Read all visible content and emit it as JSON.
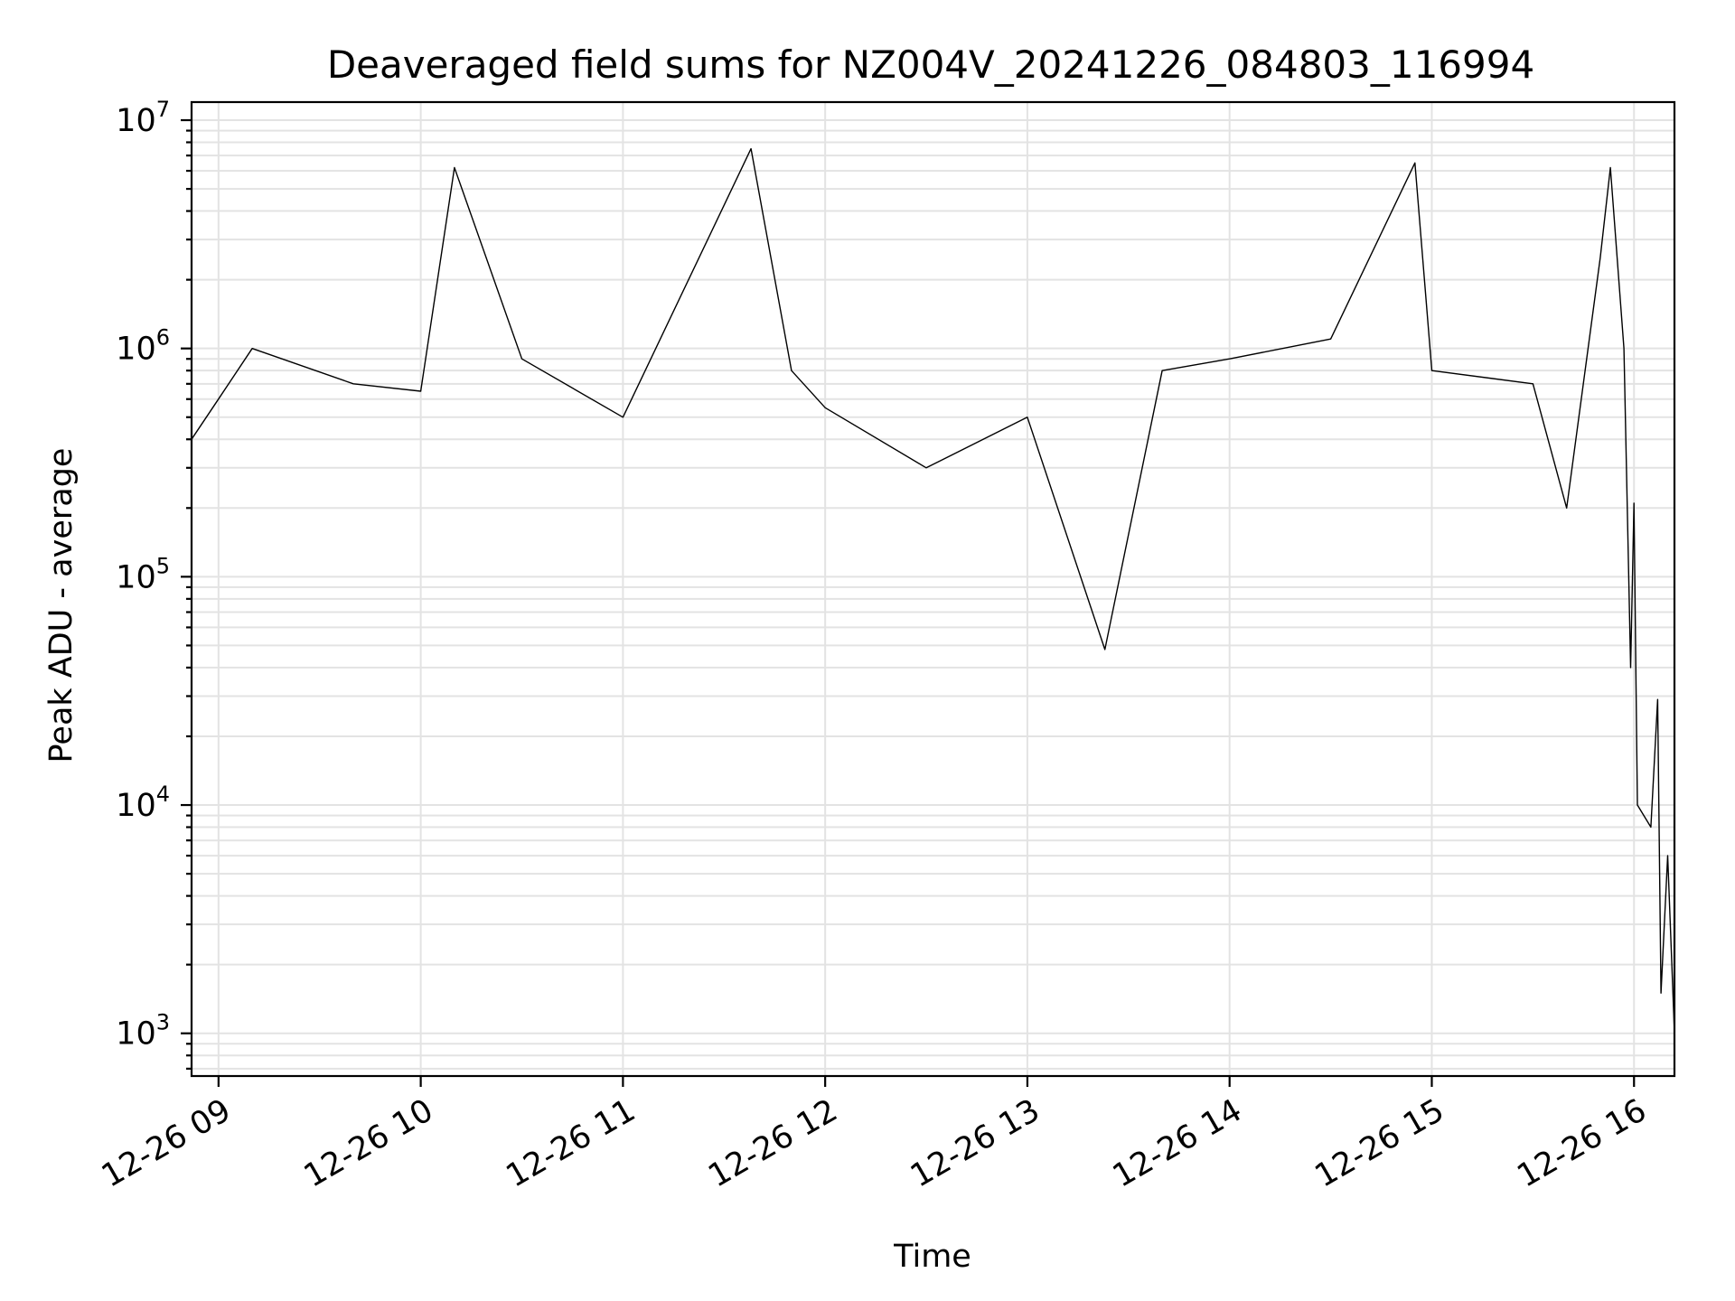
{
  "chart_data": {
    "type": "line",
    "title": "Deaveraged field sums for NZ004V_20241226_084803_116994",
    "xlabel": "Time",
    "ylabel": "Peak ADU - average",
    "yscale": "log",
    "ylim": [
      650,
      12000000
    ],
    "xlim": [
      "2024-12-26 08:52",
      "2024-12-26 16:12"
    ],
    "grid": true,
    "x_tick_labels": [
      "12-26 09",
      "12-26 10",
      "12-26 11",
      "12-26 12",
      "12-26 13",
      "12-26 14",
      "12-26 15",
      "12-26 16"
    ],
    "x_tick_values": [
      "2024-12-26 09:00",
      "2024-12-26 10:00",
      "2024-12-26 11:00",
      "2024-12-26 12:00",
      "2024-12-26 13:00",
      "2024-12-26 14:00",
      "2024-12-26 15:00",
      "2024-12-26 16:00"
    ],
    "y_ticks": [
      {
        "value": 1000,
        "base": "10",
        "exp": "3"
      },
      {
        "value": 10000,
        "base": "10",
        "exp": "4"
      },
      {
        "value": 100000,
        "base": "10",
        "exp": "5"
      },
      {
        "value": 1000000,
        "base": "10",
        "exp": "6"
      },
      {
        "value": 10000000,
        "base": "10",
        "exp": "7"
      }
    ],
    "series": [
      {
        "color": "#000000",
        "points": [
          [
            "2024-12-26 08:52",
            400000
          ],
          [
            "2024-12-26 09:00",
            600000
          ],
          [
            "2024-12-26 09:10",
            1000000
          ],
          [
            "2024-12-26 09:40",
            700000
          ],
          [
            "2024-12-26 10:00",
            650000
          ],
          [
            "2024-12-26 10:10",
            6200000
          ],
          [
            "2024-12-26 10:30",
            900000
          ],
          [
            "2024-12-26 11:00",
            500000
          ],
          [
            "2024-12-26 11:38",
            7500000
          ],
          [
            "2024-12-26 11:50",
            800000
          ],
          [
            "2024-12-26 12:00",
            550000
          ],
          [
            "2024-12-26 12:30",
            300000
          ],
          [
            "2024-12-26 13:00",
            500000
          ],
          [
            "2024-12-26 13:23",
            48000
          ],
          [
            "2024-12-26 13:40",
            800000
          ],
          [
            "2024-12-26 14:00",
            900000
          ],
          [
            "2024-12-26 14:30",
            1100000
          ],
          [
            "2024-12-26 14:55",
            6500000
          ],
          [
            "2024-12-26 15:00",
            800000
          ],
          [
            "2024-12-26 15:30",
            700000
          ],
          [
            "2024-12-26 15:40",
            200000
          ],
          [
            "2024-12-26 15:50",
            2500000
          ],
          [
            "2024-12-26 15:53",
            6200000
          ],
          [
            "2024-12-26 15:57",
            1000000
          ],
          [
            "2024-12-26 15:59",
            40000
          ],
          [
            "2024-12-26 16:00",
            210000
          ],
          [
            "2024-12-26 16:01",
            10000
          ],
          [
            "2024-12-26 16:05",
            8000
          ],
          [
            "2024-12-26 16:07",
            29000
          ],
          [
            "2024-12-26 16:08",
            1500
          ],
          [
            "2024-12-26 16:10",
            6000
          ],
          [
            "2024-12-26 16:12",
            1000
          ]
        ]
      }
    ]
  }
}
